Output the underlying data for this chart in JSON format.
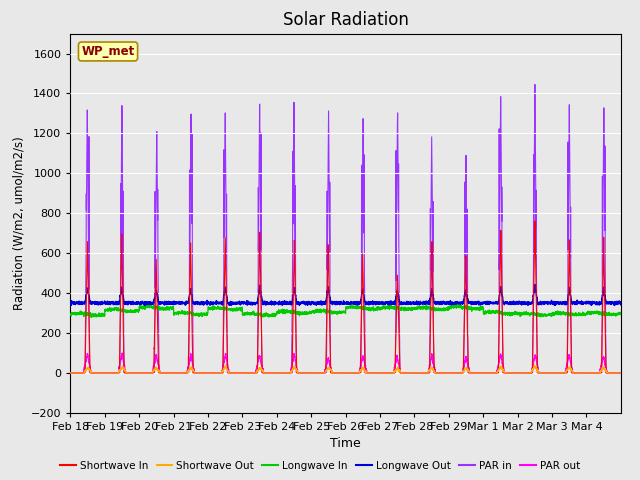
{
  "title": "Solar Radiation",
  "ylabel": "Radiation (W/m2, umol/m2/s)",
  "xlabel": "Time",
  "ylim": [
    -200,
    1700
  ],
  "yticks": [
    -200,
    0,
    200,
    400,
    600,
    800,
    1000,
    1200,
    1400,
    1600
  ],
  "fig_bg_color": "#e8e8e8",
  "plot_bg_color": "#e8e8e8",
  "legend_labels": [
    "Shortwave In",
    "Shortwave Out",
    "Longwave In",
    "Longwave Out",
    "PAR in",
    "PAR out"
  ],
  "legend_colors": [
    "#ff0000",
    "#ffaa00",
    "#00cc00",
    "#0000dd",
    "#9933ff",
    "#ff00ff"
  ],
  "station_label": "WP_met",
  "x_tick_labels": [
    "Feb 18",
    "Feb 19",
    "Feb 20",
    "Feb 21",
    "Feb 22",
    "Feb 23",
    "Feb 24",
    "Feb 25",
    "Feb 26",
    "Feb 27",
    "Feb 28",
    "Feb 29",
    "Mar 1",
    "Mar 2",
    "Mar 3",
    "Mar 4"
  ],
  "n_days": 16,
  "points_per_day": 288,
  "shortwave_in_peaks": [
    660,
    700,
    570,
    650,
    680,
    700,
    680,
    660,
    600,
    500,
    650,
    590,
    720,
    780,
    680,
    680
  ],
  "longwave_in_base": 310,
  "longwave_out_base": 350,
  "par_in_peaks": [
    1350,
    1350,
    1220,
    1340,
    1340,
    1350,
    1350,
    1340,
    1270,
    1330,
    1180,
    1100,
    1430,
    1450,
    1360,
    1360
  ],
  "par_out_peaks": [
    95,
    100,
    90,
    88,
    95,
    90,
    95,
    75,
    85,
    80,
    90,
    80,
    95,
    92,
    88,
    85
  ],
  "shortwave_out_peaks": [
    28,
    30,
    25,
    28,
    30,
    28,
    30,
    28,
    26,
    22,
    28,
    26,
    30,
    32,
    29,
    28
  ]
}
